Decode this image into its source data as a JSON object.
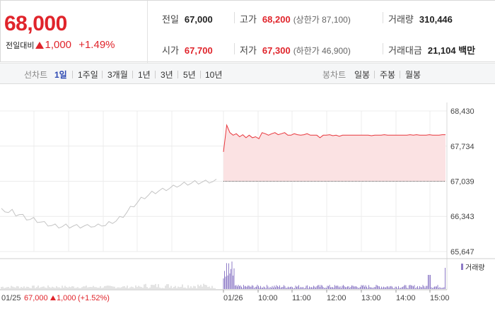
{
  "price": {
    "current": "68,000",
    "change_label": "전일대비",
    "change_value": "1,000",
    "change_pct": "+1.49%"
  },
  "stats": {
    "prev_close": {
      "label": "전일",
      "value": "67,000"
    },
    "high": {
      "label": "고가",
      "value": "68,200",
      "sub": "(상한가 87,100)"
    },
    "volume": {
      "label": "거래량",
      "value": "310,446"
    },
    "open": {
      "label": "시가",
      "value": "67,700"
    },
    "low": {
      "label": "저가",
      "value": "67,300",
      "sub": "(하한가 46,900)"
    },
    "amount": {
      "label": "거래대금",
      "value": "21,104 백만"
    }
  },
  "line_chart_tabs": {
    "label": "선차트",
    "items": [
      "1일",
      "1주일",
      "3개월",
      "1년",
      "3년",
      "5년",
      "10년"
    ],
    "active": "1일"
  },
  "candle_chart_tabs": {
    "label": "봉차트",
    "items": [
      "일봉",
      "주봉",
      "월봉"
    ]
  },
  "chart_data": {
    "type": "line",
    "yticks": [
      "68,430",
      "67,734",
      "67,039",
      "66,343",
      "65,647"
    ],
    "ylim": [
      65647,
      68430
    ],
    "xticks": [
      "01/26",
      "10:00",
      "11:00",
      "12:00",
      "13:00",
      "14:00",
      "15:00"
    ],
    "prev_day_info": {
      "date": "01/25",
      "close": "67,000",
      "change": "1,000",
      "pct": "(+1.52%)"
    },
    "reference_price": 67039,
    "volume_legend": "거래량",
    "series": [
      {
        "values": [
          66460,
          66460,
          66420,
          66440,
          66380,
          66380,
          66340,
          66300,
          66280,
          66280,
          66250,
          66230,
          66200,
          66180,
          66160,
          66150,
          66140,
          66140,
          66150,
          66140,
          66150,
          66140,
          66140,
          66150,
          66140,
          66160,
          66140,
          66150,
          66180,
          66160,
          66200,
          66230,
          66250,
          66300,
          66350,
          66420,
          66500,
          66560,
          66620,
          66680,
          66720,
          66760,
          66800,
          66820,
          66850,
          66860,
          66880,
          66900,
          66920,
          66950,
          66960,
          66980,
          66990,
          67000,
          67010,
          67010,
          67020,
          67020,
          67030,
          67030,
          67039
        ]
      },
      {
        "values": [
          67620,
          68150,
          68000,
          67950,
          67980,
          67920,
          67960,
          67900,
          67950,
          67900,
          67920,
          67880,
          68000,
          67980,
          67950,
          67980,
          68000,
          67960,
          67980,
          68000,
          67950,
          67950,
          67980,
          67960,
          67950,
          67960,
          67980,
          67950,
          67950,
          67950,
          67900,
          67950,
          67950,
          67960,
          67940,
          67950,
          67930,
          67950,
          67950,
          67950,
          67950,
          67950,
          67950,
          67950,
          67950,
          67950,
          67940,
          67950,
          67950,
          67950,
          67960,
          67950,
          67950,
          67950,
          67950,
          67950,
          67950,
          67950,
          67960,
          67950,
          67960,
          67950,
          67950,
          67950,
          67960,
          67950,
          67950,
          67950,
          67960,
          67960
        ]
      }
    ]
  }
}
